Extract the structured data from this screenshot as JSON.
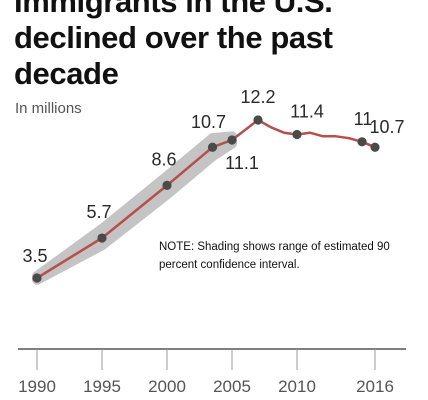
{
  "title": "Immigrants in the U.S. declined over the past decade",
  "subtitle": "In millions",
  "note_lines": [
    "NOTE: Shading shows range of estimated 90",
    "percent confidence interval."
  ],
  "colors": {
    "line": "#b5504c",
    "point": "#4a4a4a",
    "band": "#c4c4c4",
    "axis": "#333333"
  },
  "chart_data": {
    "type": "line",
    "title": "Immigrants in the U.S. declined over the past decade",
    "ylabel": "In millions",
    "xlim": [
      1990,
      2016
    ],
    "ylim": [
      3.5,
      12.2
    ],
    "x_ticks": [
      1990,
      1995,
      2000,
      2005,
      2010,
      2016
    ],
    "series": [
      {
        "values": [
          {
            "x": 1990,
            "y": 3.5
          },
          {
            "x": 1995,
            "y": 5.7
          },
          {
            "x": 2000,
            "y": 8.6
          },
          {
            "x": 2003.5,
            "y": 10.7
          },
          {
            "x": 2005,
            "y": 11.1
          },
          {
            "x": 2007,
            "y": 12.2
          },
          {
            "x": 2008,
            "y": 11.8
          },
          {
            "x": 2009,
            "y": 11.5
          },
          {
            "x": 2010,
            "y": 11.4
          },
          {
            "x": 2011,
            "y": 11.5
          },
          {
            "x": 2012,
            "y": 11.3
          },
          {
            "x": 2013,
            "y": 11.3
          },
          {
            "x": 2014,
            "y": 11.2
          },
          {
            "x": 2015,
            "y": 11.0
          },
          {
            "x": 2016,
            "y": 10.7
          }
        ]
      }
    ],
    "labeled_points": [
      {
        "x": 1990,
        "y": 3.5,
        "label": "3.5"
      },
      {
        "x": 1995,
        "y": 5.7,
        "label": "5.7"
      },
      {
        "x": 2000,
        "y": 8.6,
        "label": "8.6"
      },
      {
        "x": 2003.5,
        "y": 10.7,
        "label": "10.7"
      },
      {
        "x": 2005,
        "y": 11.1,
        "label": "11.1"
      },
      {
        "x": 2007,
        "y": 12.2,
        "label": "12.2"
      },
      {
        "x": 2010,
        "y": 11.4,
        "label": "11.4"
      },
      {
        "x": 2015,
        "y": 11.0,
        "label": "11"
      },
      {
        "x": 2016,
        "y": 10.7,
        "label": "10.7"
      }
    ],
    "confidence_band": {
      "x": [
        1990,
        1995,
        2000,
        2003.5,
        2005
      ],
      "low": [
        3.4,
        5.3,
        8.1,
        10.2,
        10.9
      ],
      "high": [
        3.6,
        6.2,
        9.1,
        11.2,
        11.3
      ]
    }
  }
}
